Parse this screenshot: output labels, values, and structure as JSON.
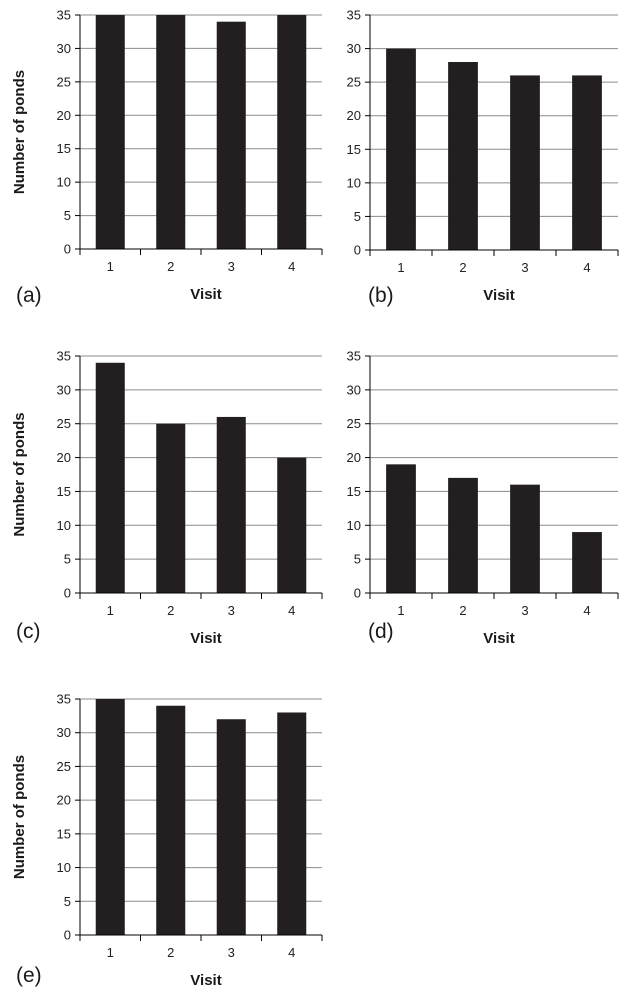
{
  "colors": {
    "bar": "#231f20",
    "grid": "#8c8c8c",
    "axis": "#000000",
    "text": "#1a1a1a"
  },
  "chart_data": [
    {
      "panel_label": "(a)",
      "type": "bar",
      "categories": [
        "1",
        "2",
        "3",
        "4"
      ],
      "values": [
        35,
        35,
        34,
        35
      ],
      "xlabel": "Visit",
      "ylabel": "Number of ponds",
      "ylim": [
        0,
        35
      ],
      "yticks": [
        0,
        5,
        10,
        15,
        20,
        25,
        30,
        35
      ],
      "grid": true
    },
    {
      "panel_label": "(b)",
      "type": "bar",
      "categories": [
        "1",
        "2",
        "3",
        "4"
      ],
      "values": [
        30,
        28,
        26,
        26
      ],
      "xlabel": "Visit",
      "ylabel": "",
      "ylim": [
        0,
        35
      ],
      "yticks": [
        0,
        5,
        10,
        15,
        20,
        25,
        30,
        35
      ],
      "grid": true
    },
    {
      "panel_label": "(c)",
      "type": "bar",
      "categories": [
        "1",
        "2",
        "3",
        "4"
      ],
      "values": [
        34,
        25,
        26,
        20
      ],
      "xlabel": "Visit",
      "ylabel": "Number of ponds",
      "ylim": [
        0,
        35
      ],
      "yticks": [
        0,
        5,
        10,
        15,
        20,
        25,
        30,
        35
      ],
      "grid": true
    },
    {
      "panel_label": "(d)",
      "type": "bar",
      "categories": [
        "1",
        "2",
        "3",
        "4"
      ],
      "values": [
        19,
        17,
        16,
        9
      ],
      "xlabel": "Visit",
      "ylabel": "",
      "ylim": [
        0,
        35
      ],
      "yticks": [
        0,
        5,
        10,
        15,
        20,
        25,
        30,
        35
      ],
      "grid": true
    },
    {
      "panel_label": "(e)",
      "type": "bar",
      "categories": [
        "1",
        "2",
        "3",
        "4"
      ],
      "values": [
        35,
        34,
        32,
        33
      ],
      "xlabel": "Visit",
      "ylabel": "Number of ponds",
      "ylim": [
        0,
        35
      ],
      "yticks": [
        0,
        5,
        10,
        15,
        20,
        25,
        30,
        35
      ],
      "grid": true
    }
  ]
}
